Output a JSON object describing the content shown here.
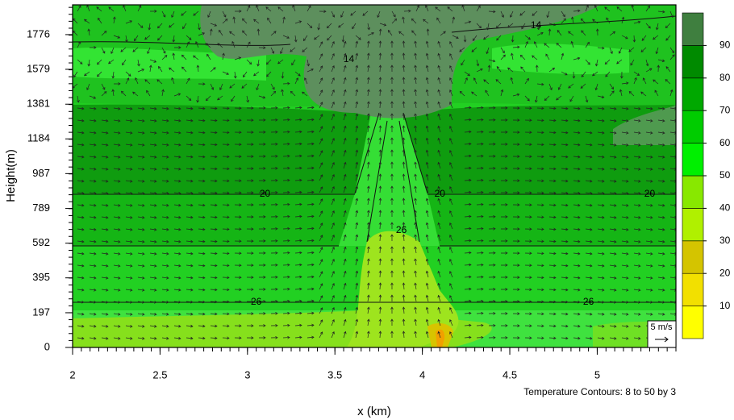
{
  "chart_data": {
    "type": "contour",
    "x_label": "x (km)",
    "y_label": "Height(m)",
    "xlim": [
      2,
      5.45
    ],
    "xticks": [
      2,
      2.5,
      3,
      3.5,
      4,
      4.5,
      5
    ],
    "ylim": [
      0,
      1945
    ],
    "yticks": [
      0,
      197,
      395,
      592,
      789,
      987,
      1184,
      1381,
      1579,
      1776
    ],
    "colorbar": {
      "lim": [
        0,
        100
      ],
      "ticks": [
        10,
        20,
        30,
        40,
        50,
        60,
        70,
        80,
        90
      ],
      "colors": [
        "#ffff00",
        "#f2e000",
        "#d4c400",
        "#b0f000",
        "#88e800",
        "#00f000",
        "#00cc00",
        "#00a800",
        "#008a00",
        "#3f7f3f"
      ]
    },
    "contour_labels": [
      {
        "value": 14,
        "x": 4.65,
        "y": 1826
      },
      {
        "value": 14,
        "x": 3.58,
        "y": 1634
      },
      {
        "value": 20,
        "x": 3.1,
        "y": 870
      },
      {
        "value": 20,
        "x": 4.1,
        "y": 870
      },
      {
        "value": 20,
        "x": 5.3,
        "y": 870
      },
      {
        "value": 26,
        "x": 3.88,
        "y": 664
      },
      {
        "value": 26,
        "x": 3.05,
        "y": 256
      },
      {
        "value": 26,
        "x": 4.95,
        "y": 256
      }
    ],
    "annotation": "Temperature Contours: 8 to 50 by 3",
    "reference_vector_label": "5 m/s"
  }
}
